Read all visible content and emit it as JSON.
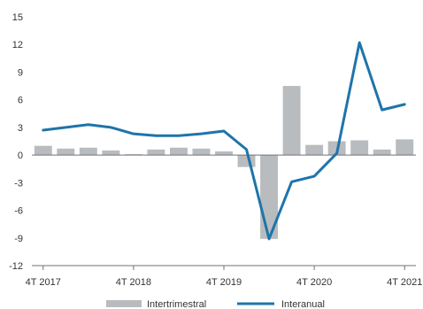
{
  "chart_data": {
    "type": "bar+line",
    "title": "",
    "xlabel": "",
    "ylabel": "",
    "ylim": [
      -12,
      15
    ],
    "yticks": [
      15,
      12,
      9,
      6,
      3,
      0,
      -3,
      -6,
      -9,
      -12
    ],
    "grid": false,
    "legend_position": "bottom",
    "x_tick_labels": [
      {
        "index": 0,
        "label": "4T 2017"
      },
      {
        "index": 4,
        "label": "4T 2018"
      },
      {
        "index": 8,
        "label": "4T 2019"
      },
      {
        "index": 12,
        "label": "4T 2020"
      },
      {
        "index": 16,
        "label": "4T 2021"
      }
    ],
    "series": [
      {
        "name": "Intertrimestral",
        "type": "bar",
        "color": "#b9bcbe",
        "values": [
          1.0,
          0.7,
          0.8,
          0.5,
          0.1,
          0.6,
          0.8,
          0.7,
          0.4,
          -1.3,
          -9.1,
          7.5,
          1.1,
          1.5,
          1.6,
          0.6,
          1.7
        ]
      },
      {
        "name": "Interanual",
        "type": "line",
        "color": "#1f74ab",
        "values": [
          2.7,
          3.0,
          3.3,
          3.0,
          2.3,
          2.1,
          2.1,
          2.3,
          2.6,
          0.6,
          -9.1,
          -2.9,
          -2.3,
          0.2,
          12.2,
          4.9,
          5.5
        ]
      }
    ]
  }
}
